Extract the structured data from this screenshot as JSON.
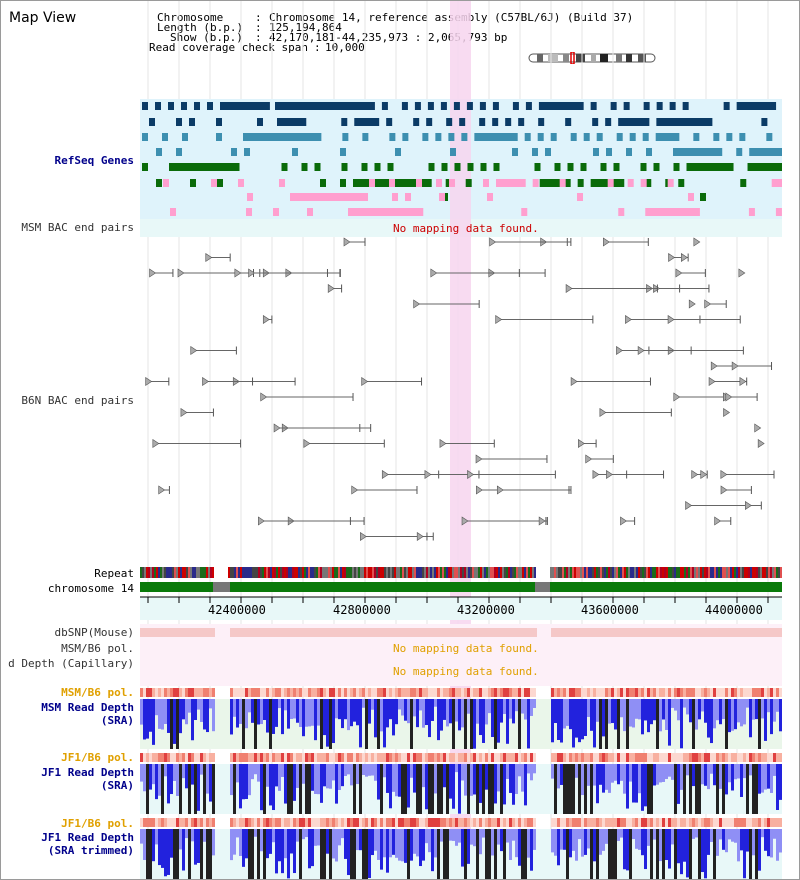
{
  "app": {
    "title": "Map View"
  },
  "header": {
    "chromosome_label": "Chromosome",
    "chromosome_value": "Chromosome 14, reference assembly (C57BL/6J) (Build 37)",
    "length_label": "Length (b.p.)",
    "length_value": "125,194,864",
    "show_label": "Show (b.p.)",
    "show_value": "42,170,181-44,235,973 : 2,065,793 bp",
    "coverage_label": "Read coverage check span",
    "coverage_value": "10,000"
  },
  "tracks": {
    "refseq": "RefSeq Genes",
    "msm_bac": "MSM BAC end pairs",
    "msm_bac_msg": "No mapping data found.",
    "b6n_bac": "B6N BAC end pairs",
    "repeat": "Repeat",
    "chromosome": "chromosome 14",
    "dbsnp": "dbSNP(Mouse)",
    "msm_b6_pol_gray": "MSM/B6 pol.",
    "msm_b6_pol_gray_msg": "No mapping data found.",
    "read_depth_capillary": "d Depth (Capillary)",
    "read_depth_capillary_msg": "No mapping data found.",
    "msm_b6_pol": "MSM/B6 pol.",
    "msm_read_depth_1": "MSM Read Depth",
    "msm_read_depth_2": "(SRA)",
    "jf1_b6_pol_1": "JF1/B6 pol.",
    "jf1_read_depth_1": "JF1 Read Depth",
    "jf1_read_depth_2": "(SRA)",
    "jf1_b6_pol_2": "JF1/B6 pol.",
    "jf1_trim_1": "JF1 Read Depth",
    "jf1_trim_2": "(SRA trimmed)"
  },
  "axis": {
    "ticks": [
      "42400000",
      "42800000",
      "43200000",
      "43600000",
      "44000000"
    ]
  },
  "colors": {
    "refseq_bg": "#dff3fb",
    "highlight": "#f7d5ee",
    "gene_dark": "#0b3b66",
    "gene_teal": "#3d8fb0",
    "gene_green": "#0a6b0a",
    "gene_pink": "#ff9fcf",
    "chromosome_green": "#0a7a0a",
    "read_blue": "#2222dd",
    "read_light": "#8f8ff5",
    "dbsnp_pink": "#f5c8c8"
  }
}
